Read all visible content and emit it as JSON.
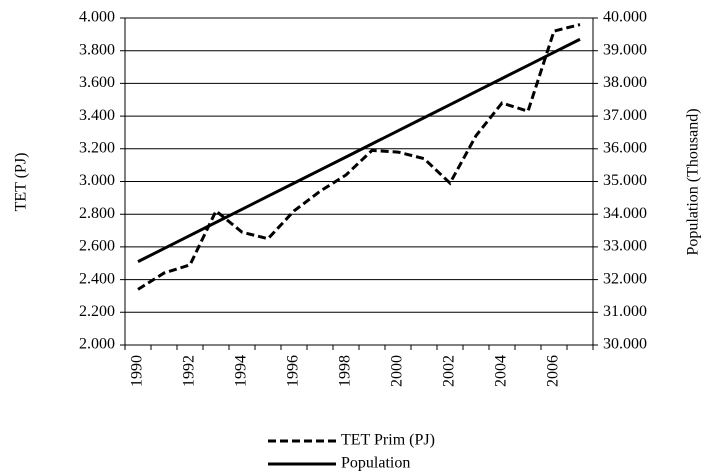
{
  "chart_data": {
    "type": "line",
    "y_label": "TET  (PJ)",
    "y2_label": "Population (Thousand)",
    "categories": [
      "1990",
      null,
      "1992",
      null,
      "1994",
      null,
      "1996",
      null,
      "1998",
      null,
      "2000",
      null,
      "2002",
      null,
      "2004",
      null,
      "2006",
      null
    ],
    "ylim": [
      2000,
      4000
    ],
    "yticks": [
      {
        "value": 2000,
        "label": "2.000"
      },
      {
        "value": 2200,
        "label": "2.200"
      },
      {
        "value": 2400,
        "label": "2.400"
      },
      {
        "value": 2600,
        "label": "2.600"
      },
      {
        "value": 2800,
        "label": "2.800"
      },
      {
        "value": 3000,
        "label": "3.000"
      },
      {
        "value": 3200,
        "label": "3.200"
      },
      {
        "value": 3400,
        "label": "3.400"
      },
      {
        "value": 3600,
        "label": "3.600"
      },
      {
        "value": 3800,
        "label": "3.800"
      },
      {
        "value": 4000,
        "label": "4.000"
      }
    ],
    "y2lim": [
      30000,
      40000
    ],
    "y2ticks": [
      {
        "value": 30000,
        "label": "30.000"
      },
      {
        "value": 31000,
        "label": "31.000"
      },
      {
        "value": 32000,
        "label": "32.000"
      },
      {
        "value": 33000,
        "label": "33.000"
      },
      {
        "value": 34000,
        "label": "34.000"
      },
      {
        "value": 35000,
        "label": "35.000"
      },
      {
        "value": 36000,
        "label": "36.000"
      },
      {
        "value": 37000,
        "label": "37.000"
      },
      {
        "value": 38000,
        "label": "38.000"
      },
      {
        "value": 39000,
        "label": "39.000"
      },
      {
        "value": 40000,
        "label": "40.000"
      }
    ],
    "grid": true,
    "legend": "bottom",
    "series": [
      {
        "name": "TET Prim (PJ)",
        "color": "#000000",
        "dashed": true,
        "values": [
          2340,
          2440,
          2490,
          2820,
          2690,
          2650,
          2820,
          2940,
          3040,
          3190,
          3180,
          3140,
          2990,
          3280,
          3480,
          3430,
          3920,
          3960
        ]
      },
      {
        "name": "Population",
        "color": "#000000",
        "dashed": false,
        "axis": "y2",
        "values": [
          32550,
          32950,
          33350,
          33750,
          34150,
          34550,
          34950,
          35350,
          35750,
          36150,
          36550,
          36950,
          37350,
          37750,
          38150,
          38550,
          38950,
          39350
        ]
      }
    ]
  }
}
